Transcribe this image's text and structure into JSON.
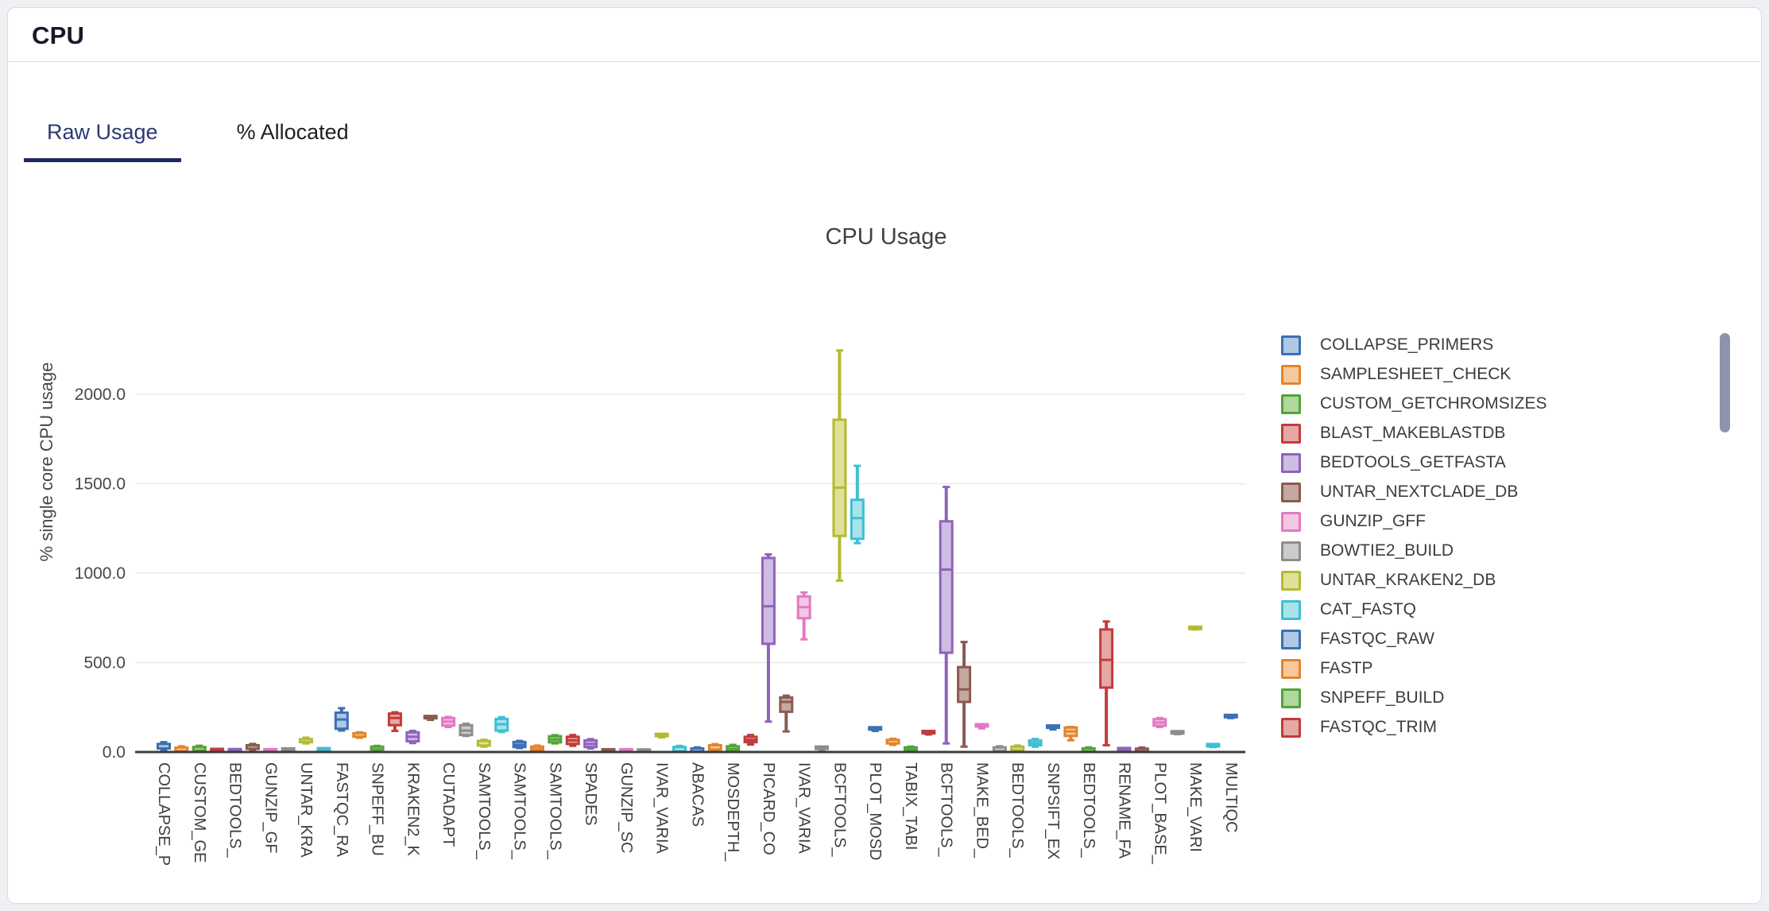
{
  "page": {
    "background": "#eef0f3",
    "card_background": "#ffffff",
    "card_border": "#d9dbe0"
  },
  "header": {
    "title": "CPU"
  },
  "tabs": [
    {
      "label": "Raw Usage",
      "active": true
    },
    {
      "label": "% Allocated",
      "active": false
    }
  ],
  "tab_accent_color": "#1e2a5e",
  "legend_scrollbar_color": "#8b94ab",
  "chart_data": {
    "type": "box",
    "title": "CPU Usage",
    "xlabel": "",
    "ylabel": "% single core CPU usage",
    "ylim": [
      0,
      2350
    ],
    "yticks": [
      0,
      500,
      1000,
      1500,
      2000
    ],
    "ytick_labels": [
      "0.0",
      "500.0",
      "1000.0",
      "1500.0",
      "2000.0"
    ],
    "grid": true,
    "legend_position": "right",
    "palette": [
      {
        "stroke": "#3d6fb4",
        "fill": "#aec8e5"
      },
      {
        "stroke": "#e5832c",
        "fill": "#f5c99d"
      },
      {
        "stroke": "#53a338",
        "fill": "#b0d79c"
      },
      {
        "stroke": "#c23b3b",
        "fill": "#e5a8a5"
      },
      {
        "stroke": "#8f63bb",
        "fill": "#cfbce2"
      },
      {
        "stroke": "#8a5a50",
        "fill": "#c5a89f"
      },
      {
        "stroke": "#e279c2",
        "fill": "#f3c6e4"
      },
      {
        "stroke": "#8d8d8d",
        "fill": "#cbcbcb"
      },
      {
        "stroke": "#b4ba30",
        "fill": "#e0e099"
      },
      {
        "stroke": "#3ebfd1",
        "fill": "#a9e2ea"
      }
    ],
    "boxes": [
      {
        "label": "COLLAPSE_P",
        "c": 0,
        "v": [
          10,
          20,
          32,
          45,
          55
        ]
      },
      {
        "label": "",
        "c": 1,
        "v": [
          0,
          5,
          14,
          25,
          32
        ]
      },
      {
        "label": "CUSTOM_GE",
        "c": 2,
        "v": [
          2,
          8,
          16,
          28,
          35
        ]
      },
      {
        "label": "",
        "c": 3,
        "v": [
          0,
          2,
          6,
          11,
          15
        ]
      },
      {
        "label": "BEDTOOLS_",
        "c": 4,
        "v": [
          0,
          2,
          5,
          10,
          13
        ]
      },
      {
        "label": "",
        "c": 5,
        "v": [
          12,
          18,
          27,
          38,
          45
        ]
      },
      {
        "label": "GUNZIP_GF",
        "c": 6,
        "v": [
          0,
          2,
          5,
          9,
          12
        ]
      },
      {
        "label": "",
        "c": 7,
        "v": [
          0,
          3,
          8,
          14,
          18
        ]
      },
      {
        "label": "UNTAR_KRA",
        "c": 8,
        "v": [
          48,
          55,
          63,
          72,
          80
        ]
      },
      {
        "label": "",
        "c": 9,
        "v": [
          0,
          3,
          8,
          15,
          20
        ]
      },
      {
        "label": "FASTQC_RA",
        "c": 0,
        "v": [
          120,
          130,
          182,
          220,
          245
        ]
      },
      {
        "label": "",
        "c": 1,
        "v": [
          80,
          86,
          95,
          105,
          110
        ]
      },
      {
        "label": "SNPEFF_BU",
        "c": 2,
        "v": [
          10,
          14,
          22,
          30,
          34
        ]
      },
      {
        "label": "",
        "c": 3,
        "v": [
          118,
          150,
          190,
          215,
          222
        ]
      },
      {
        "label": "KRAKEN2_K",
        "c": 4,
        "v": [
          50,
          60,
          85,
          110,
          118
        ]
      },
      {
        "label": "",
        "c": 5,
        "v": [
          180,
          184,
          190,
          195,
          198
        ]
      },
      {
        "label": "CUTADAPT",
        "c": 6,
        "v": [
          140,
          148,
          170,
          190,
          196
        ]
      },
      {
        "label": "",
        "c": 7,
        "v": [
          90,
          95,
          120,
          150,
          158
        ]
      },
      {
        "label": "SAMTOOLS_",
        "c": 8,
        "v": [
          30,
          36,
          50,
          62,
          68
        ]
      },
      {
        "label": "",
        "c": 9,
        "v": [
          112,
          120,
          155,
          185,
          195
        ]
      },
      {
        "label": "SAMTOOLS_",
        "c": 0,
        "v": [
          22,
          28,
          40,
          56,
          62
        ]
      },
      {
        "label": "",
        "c": 1,
        "v": [
          0,
          3,
          15,
          30,
          36
        ]
      },
      {
        "label": "SAMTOOLS_",
        "c": 2,
        "v": [
          48,
          54,
          70,
          88,
          94
        ]
      },
      {
        "label": "",
        "c": 3,
        "v": [
          35,
          45,
          65,
          85,
          95
        ]
      },
      {
        "label": "SPADES",
        "c": 4,
        "v": [
          20,
          28,
          45,
          65,
          72
        ]
      },
      {
        "label": "",
        "c": 5,
        "v": [
          0,
          2,
          5,
          9,
          12
        ]
      },
      {
        "label": "GUNZIP_SC",
        "c": 6,
        "v": [
          0,
          2,
          5,
          9,
          12
        ]
      },
      {
        "label": "",
        "c": 7,
        "v": [
          0,
          1,
          4,
          8,
          10
        ]
      },
      {
        "label": "IVAR_VARIA",
        "c": 8,
        "v": [
          82,
          86,
          90,
          95,
          98
        ]
      },
      {
        "label": "",
        "c": 9,
        "v": [
          0,
          4,
          14,
          28,
          34
        ]
      },
      {
        "label": "ABACAS",
        "c": 0,
        "v": [
          0,
          3,
          10,
          20,
          26
        ]
      },
      {
        "label": "",
        "c": 1,
        "v": [
          10,
          14,
          25,
          38,
          44
        ]
      },
      {
        "label": "MOSDEPTH_",
        "c": 2,
        "v": [
          0,
          5,
          16,
          32,
          40
        ]
      },
      {
        "label": "",
        "c": 3,
        "v": [
          42,
          55,
          68,
          85,
          95
        ]
      },
      {
        "label": "PICARD_CO",
        "c": 4,
        "v": [
          170,
          605,
          815,
          1085,
          1105
        ]
      },
      {
        "label": "",
        "c": 5,
        "v": [
          115,
          225,
          280,
          305,
          315
        ]
      },
      {
        "label": "IVAR_VARIA",
        "c": 6,
        "v": [
          630,
          748,
          810,
          870,
          892
        ]
      },
      {
        "label": "",
        "c": 7,
        "v": [
          8,
          12,
          17,
          24,
          28
        ]
      },
      {
        "label": "BCFTOOLS_",
        "c": 8,
        "v": [
          958,
          1208,
          1478,
          1858,
          2245
        ]
      },
      {
        "label": "",
        "c": 9,
        "v": [
          1168,
          1192,
          1308,
          1410,
          1600
        ]
      },
      {
        "label": "PLOT_MOSD",
        "c": 0,
        "v": [
          118,
          122,
          127,
          132,
          136
        ]
      },
      {
        "label": "",
        "c": 1,
        "v": [
          40,
          48,
          58,
          68,
          74
        ]
      },
      {
        "label": "TABIX_TABI",
        "c": 2,
        "v": [
          8,
          12,
          18,
          26,
          30
        ]
      },
      {
        "label": "",
        "c": 3,
        "v": [
          98,
          102,
          106,
          111,
          115
        ]
      },
      {
        "label": "BCFTOOLS_",
        "c": 4,
        "v": [
          48,
          555,
          1020,
          1290,
          1482
        ]
      },
      {
        "label": "",
        "c": 5,
        "v": [
          30,
          280,
          350,
          475,
          615
        ]
      },
      {
        "label": "MAKE_BED_",
        "c": 6,
        "v": [
          132,
          138,
          143,
          149,
          154
        ]
      },
      {
        "label": "",
        "c": 7,
        "v": [
          0,
          5,
          14,
          26,
          32
        ]
      },
      {
        "label": "BEDTOOLS_",
        "c": 8,
        "v": [
          5,
          10,
          18,
          30,
          36
        ]
      },
      {
        "label": "",
        "c": 9,
        "v": [
          30,
          38,
          50,
          65,
          73
        ]
      },
      {
        "label": "SNPSIFT_EX",
        "c": 0,
        "v": [
          126,
          130,
          136,
          142,
          147
        ]
      },
      {
        "label": "",
        "c": 1,
        "v": [
          66,
          90,
          115,
          137,
          140
        ]
      },
      {
        "label": "BEDTOOLS_",
        "c": 2,
        "v": [
          0,
          4,
          10,
          20,
          26
        ]
      },
      {
        "label": "",
        "c": 3,
        "v": [
          38,
          360,
          515,
          685,
          730
        ]
      },
      {
        "label": "RENAME_FA",
        "c": 4,
        "v": [
          0,
          3,
          8,
          16,
          22
        ]
      },
      {
        "label": "",
        "c": 5,
        "v": [
          0,
          4,
          10,
          19,
          25
        ]
      },
      {
        "label": "PLOT_BASE_",
        "c": 6,
        "v": [
          140,
          147,
          165,
          184,
          190
        ]
      },
      {
        "label": "",
        "c": 7,
        "v": [
          100,
          103,
          106,
          110,
          113
        ]
      },
      {
        "label": "MAKE_VARI",
        "c": 8,
        "v": [
          685,
          688,
          691,
          694,
          697
        ]
      },
      {
        "label": "",
        "c": 9,
        "v": [
          28,
          31,
          34,
          38,
          41
        ]
      },
      {
        "label": "MULTIQC",
        "c": 0,
        "v": [
          190,
          193,
          197,
          201,
          204
        ]
      }
    ]
  },
  "legend": {
    "items": [
      {
        "label": "COLLAPSE_PRIMERS",
        "c": 0
      },
      {
        "label": "SAMPLESHEET_CHECK",
        "c": 1
      },
      {
        "label": "CUSTOM_GETCHROMSIZES",
        "c": 2
      },
      {
        "label": "BLAST_MAKEBLASTDB",
        "c": 3
      },
      {
        "label": "BEDTOOLS_GETFASTA",
        "c": 4
      },
      {
        "label": "UNTAR_NEXTCLADE_DB",
        "c": 5
      },
      {
        "label": "GUNZIP_GFF",
        "c": 6
      },
      {
        "label": "BOWTIE2_BUILD",
        "c": 7
      },
      {
        "label": "UNTAR_KRAKEN2_DB",
        "c": 8
      },
      {
        "label": "CAT_FASTQ",
        "c": 9
      },
      {
        "label": "FASTQC_RAW",
        "c": 0
      },
      {
        "label": "FASTP",
        "c": 1
      },
      {
        "label": "SNPEFF_BUILD",
        "c": 2
      },
      {
        "label": "FASTQC_TRIM",
        "c": 3
      }
    ]
  }
}
